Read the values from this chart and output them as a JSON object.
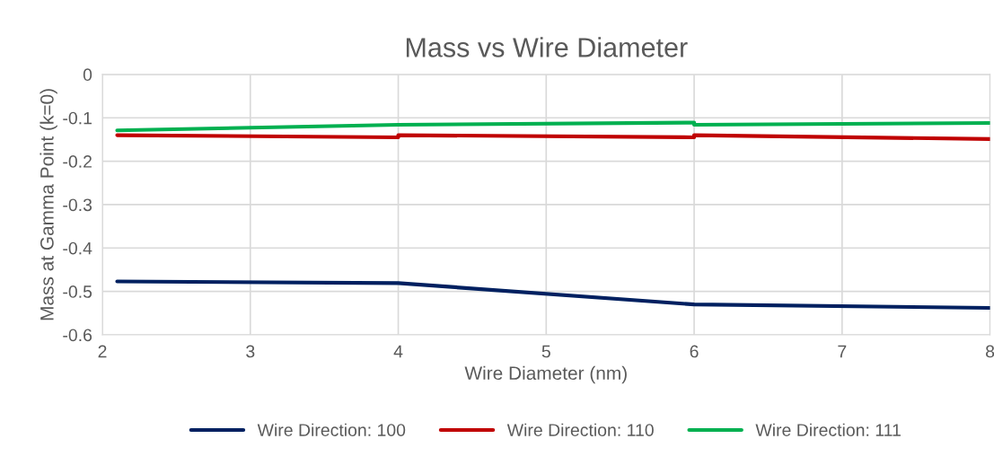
{
  "chart_data": {
    "type": "line",
    "title": "Mass vs Wire Diameter",
    "xlabel": "Wire Diameter (nm)",
    "ylabel": "Mass at Gamma Point (k=0)",
    "xlim": [
      2,
      8
    ],
    "xticks": [
      2,
      3,
      4,
      5,
      6,
      7,
      8
    ],
    "ylim": [
      -0.6,
      0
    ],
    "yticks": [
      -0.6,
      -0.5,
      -0.4,
      -0.3,
      -0.2,
      -0.1,
      0
    ],
    "grid": true,
    "legend": "bottom",
    "marker": "none",
    "line_style": "solid",
    "series": [
      {
        "name": "Wire Direction: 100",
        "color": "#002060",
        "x": [
          2.1,
          4,
          6,
          8
        ],
        "values": [
          -0.477,
          -0.481,
          -0.53,
          -0.538
        ]
      },
      {
        "name": "Wire Direction: 110",
        "color": "#c00000",
        "x": [
          2.1,
          4,
          4,
          6,
          6,
          8
        ],
        "values": [
          -0.14,
          -0.145,
          -0.14,
          -0.145,
          -0.14,
          -0.149
        ]
      },
      {
        "name": "Wire Direction: 111",
        "color": "#00b050",
        "x": [
          2.1,
          4,
          6,
          6,
          8
        ],
        "values": [
          -0.129,
          -0.116,
          -0.111,
          -0.116,
          -0.112
        ]
      }
    ]
  }
}
